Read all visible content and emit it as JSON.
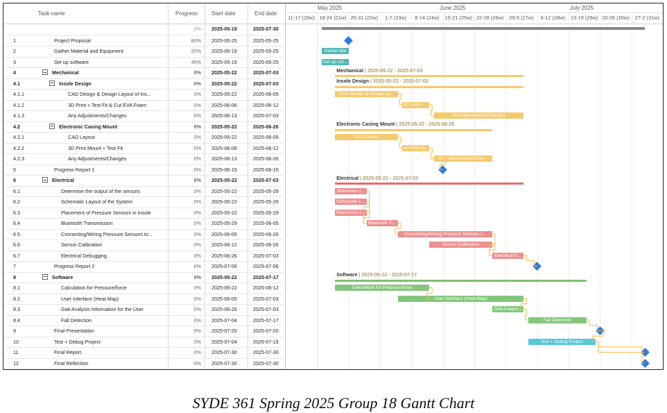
{
  "headers": {
    "task_name": "Task name",
    "progress": "Progress",
    "start": "Start date",
    "end": "End date"
  },
  "months": [
    "May 2025",
    "June 2025",
    "July 2025"
  ],
  "weeks": [
    "11-17 (20w)",
    "18-24 (21w)",
    "25-31 (22w)",
    "1-7 (23w)",
    "8-14 (24w)",
    "15-21 (25w)",
    "22-28 (26w)",
    "29-5 (27w)",
    "6-12 (28w)",
    "13-19 (29w)",
    "20-26 (30w)",
    "27-2 (31w)"
  ],
  "project_row": {
    "progress": "3%",
    "start": "2025-05-19",
    "end": "2025-07-30"
  },
  "tasks": [
    {
      "id": "1",
      "name": "Project Proposal",
      "progress": "80%",
      "start": "2025-05-25",
      "end": "2025-05-25",
      "level": 1,
      "bold": false,
      "expander": false
    },
    {
      "id": "2",
      "name": "Gather Material and Equipment",
      "progress": "20%",
      "start": "2025-05-19",
      "end": "2025-05-25",
      "level": 1,
      "bold": false,
      "expander": false
    },
    {
      "id": "3",
      "name": "Set up software",
      "progress": "45%",
      "start": "2025-05-19",
      "end": "2025-05-25",
      "level": 1,
      "bold": false,
      "expander": false
    },
    {
      "id": "4",
      "name": "Mechanical",
      "progress": "0%",
      "start": "2025-05-22",
      "end": "2025-07-03",
      "level": 0,
      "bold": true,
      "expander": true
    },
    {
      "id": "4.1",
      "name": "Insole Design",
      "progress": "0%",
      "start": "2025-05-22",
      "end": "2025-07-03",
      "level": 1,
      "bold": true,
      "expander": true
    },
    {
      "id": "4.1.1",
      "name": "CAD Design & Design Layout of Ins...",
      "progress": "0%",
      "start": "2025-05-22",
      "end": "2025-06-05",
      "level": 3,
      "bold": false,
      "expander": false
    },
    {
      "id": "4.1.2",
      "name": "3D Print + Test Fit & Cut EVA Foam",
      "progress": "0%",
      "start": "2025-06-06",
      "end": "2025-06-12",
      "level": 3,
      "bold": false,
      "expander": false
    },
    {
      "id": "4.1.3",
      "name": "Any Adjustments/Changes",
      "progress": "0%",
      "start": "2025-06-13",
      "end": "2025-07-03",
      "level": 3,
      "bold": false,
      "expander": false
    },
    {
      "id": "4.2",
      "name": "Electronic Casing Mount",
      "progress": "0%",
      "start": "2025-05-22",
      "end": "2025-06-26",
      "level": 1,
      "bold": true,
      "expander": true
    },
    {
      "id": "4.2.1",
      "name": "CAD Layout",
      "progress": "0%",
      "start": "2025-05-22",
      "end": "2025-06-05",
      "level": 3,
      "bold": false,
      "expander": false
    },
    {
      "id": "4.2.2",
      "name": "3D Print Mount + Test Fit",
      "progress": "0%",
      "start": "2025-06-06",
      "end": "2025-06-12",
      "level": 3,
      "bold": false,
      "expander": false
    },
    {
      "id": "4.2.3",
      "name": "Any Adjustments/Changes",
      "progress": "0%",
      "start": "2025-06-13",
      "end": "2025-06-26",
      "level": 3,
      "bold": false,
      "expander": false
    },
    {
      "id": "5",
      "name": "Progress Report 1",
      "progress": "0%",
      "start": "2025-06-15",
      "end": "2025-06-15",
      "level": 1,
      "bold": false,
      "expander": false
    },
    {
      "id": "6",
      "name": "Electrical",
      "progress": "0%",
      "start": "2025-05-22",
      "end": "2025-07-03",
      "level": 0,
      "bold": true,
      "expander": true
    },
    {
      "id": "6.1",
      "name": "Determine the output of the sensors",
      "progress": "0%",
      "start": "2025-05-22",
      "end": "2025-05-29",
      "level": 2,
      "bold": false,
      "expander": false
    },
    {
      "id": "6.2",
      "name": "Schematic Layout of the System",
      "progress": "0%",
      "start": "2025-05-22",
      "end": "2025-05-29",
      "level": 2,
      "bold": false,
      "expander": false
    },
    {
      "id": "6.3",
      "name": "Placement of Pressure Sensors in Insole",
      "progress": "0%",
      "start": "2025-05-22",
      "end": "2025-05-29",
      "level": 2,
      "bold": false,
      "expander": false
    },
    {
      "id": "6.4",
      "name": "Bluetooth Transmission",
      "progress": "0%",
      "start": "2025-05-29",
      "end": "2025-06-05",
      "level": 2,
      "bold": false,
      "expander": false
    },
    {
      "id": "6.5",
      "name": "Connecting/Wiring Pressure Sensors to...",
      "progress": "0%",
      "start": "2025-06-05",
      "end": "2025-06-26",
      "level": 2,
      "bold": false,
      "expander": false
    },
    {
      "id": "6.6",
      "name": "Sensor Calibration",
      "progress": "0%",
      "start": "2025-06-12",
      "end": "2025-06-26",
      "level": 2,
      "bold": false,
      "expander": false
    },
    {
      "id": "6.7",
      "name": "Electrical Debugging",
      "progress": "0%",
      "start": "2025-06-26",
      "end": "2025-07-03",
      "level": 2,
      "bold": false,
      "expander": false
    },
    {
      "id": "7",
      "name": "Progress Report 2",
      "progress": "0%",
      "start": "2025-07-06",
      "end": "2025-07-06",
      "level": 1,
      "bold": false,
      "expander": false
    },
    {
      "id": "8",
      "name": "Software",
      "progress": "0%",
      "start": "2025-05-22",
      "end": "2025-07-17",
      "level": 0,
      "bold": true,
      "expander": true
    },
    {
      "id": "8.1",
      "name": "Calculation for Pressure/force",
      "progress": "0%",
      "start": "2025-05-22",
      "end": "2025-06-12",
      "level": 2,
      "bold": false,
      "expander": false
    },
    {
      "id": "8.2",
      "name": "User Interface (Heat Map)",
      "progress": "0%",
      "start": "2025-06-05",
      "end": "2025-07-03",
      "level": 2,
      "bold": false,
      "expander": false
    },
    {
      "id": "8.3",
      "name": "Gait Analysis Information for the User",
      "progress": "0%",
      "start": "2025-06-26",
      "end": "2025-07-03",
      "level": 2,
      "bold": false,
      "expander": false
    },
    {
      "id": "8.4",
      "name": "Fall Detection",
      "progress": "0%",
      "start": "2025-07-04",
      "end": "2025-07-17",
      "level": 2,
      "bold": false,
      "expander": false
    },
    {
      "id": "9",
      "name": "Final Presentation",
      "progress": "0%",
      "start": "2025-07-20",
      "end": "2025-07-20",
      "level": 1,
      "bold": false,
      "expander": false
    },
    {
      "id": "10",
      "name": "Test + Debug Project",
      "progress": "0%",
      "start": "2025-07-04",
      "end": "2025-07-19",
      "level": 1,
      "bold": false,
      "expander": false
    },
    {
      "id": "11",
      "name": "Final Report",
      "progress": "0%",
      "start": "2025-07-30",
      "end": "2025-07-30",
      "level": 1,
      "bold": false,
      "expander": false
    },
    {
      "id": "12",
      "name": "Final Reflection",
      "progress": "0%",
      "start": "2025-07-30",
      "end": "2025-07-30",
      "level": 1,
      "bold": false,
      "expander": false
    }
  ],
  "bars": [
    {
      "row": 0,
      "kind": "milestone",
      "start": "2025-05-25",
      "color": "#2a7ae2",
      "label": ""
    },
    {
      "row": 1,
      "kind": "task",
      "start": "2025-05-19",
      "end": "2025-05-25",
      "color": "#52b7b8",
      "label": "Gather Ma"
    },
    {
      "row": 2,
      "kind": "task",
      "start": "2025-05-19",
      "end": "2025-05-25",
      "color": "#52b7b8",
      "label": "Set up sof..."
    },
    {
      "row": 3,
      "kind": "summary",
      "start": "2025-05-22",
      "end": "2025-07-03",
      "color": "#f6c96b",
      "label": "Mechanical",
      "dates": "2025-05-22 - 2025-07-03"
    },
    {
      "row": 4,
      "kind": "summary",
      "start": "2025-05-22",
      "end": "2025-07-03",
      "color": "#f6c96b",
      "label": "Insole Design",
      "dates": "2025-05-22 - 2025-07-03"
    },
    {
      "row": 5,
      "kind": "task",
      "start": "2025-05-22",
      "end": "2025-06-05",
      "color": "#f6c96b",
      "label": "CAD Design & Design La..."
    },
    {
      "row": 6,
      "kind": "task",
      "start": "2025-06-06",
      "end": "2025-06-12",
      "color": "#f6c96b",
      "label": "3D Print + ..."
    },
    {
      "row": 7,
      "kind": "task",
      "start": "2025-06-13",
      "end": "2025-07-03",
      "color": "#f6c96b",
      "label": "Any Adjustments/Changes"
    },
    {
      "row": 8,
      "kind": "summary",
      "start": "2025-05-22",
      "end": "2025-06-26",
      "color": "#f6c96b",
      "label": "Electronic Casing Mount",
      "dates": "2025-05-22 - 2025-06-26"
    },
    {
      "row": 9,
      "kind": "task",
      "start": "2025-05-22",
      "end": "2025-06-05",
      "color": "#f6c96b",
      "label": "CAD Layout"
    },
    {
      "row": 10,
      "kind": "task",
      "start": "2025-06-06",
      "end": "2025-06-12",
      "color": "#f6c96b",
      "label": "3D Print M..."
    },
    {
      "row": 11,
      "kind": "task",
      "start": "2025-06-13",
      "end": "2025-06-26",
      "color": "#f6c96b",
      "label": "Any Adjustments/Chan..."
    },
    {
      "row": 12,
      "kind": "milestone",
      "start": "2025-06-15",
      "color": "#2a7ae2",
      "label": ""
    },
    {
      "row": 13,
      "kind": "summary",
      "start": "2025-05-22",
      "end": "2025-07-03",
      "color": "#e86a6a",
      "label": "Electrical",
      "dates": "2025-05-22 - 2025-07-03"
    },
    {
      "row": 14,
      "kind": "task",
      "start": "2025-05-22",
      "end": "2025-05-29",
      "color": "#ee8e8e",
      "label": "Determine t..."
    },
    {
      "row": 15,
      "kind": "task",
      "start": "2025-05-22",
      "end": "2025-05-29",
      "color": "#ee8e8e",
      "label": "Schematic L..."
    },
    {
      "row": 16,
      "kind": "task",
      "start": "2025-05-22",
      "end": "2025-05-29",
      "color": "#ee8e8e",
      "label": "Placement o..."
    },
    {
      "row": 17,
      "kind": "task",
      "start": "2025-05-29",
      "end": "2025-06-05",
      "color": "#ee8e8e",
      "label": "Bluetooth Tr..."
    },
    {
      "row": 18,
      "kind": "task",
      "start": "2025-06-05",
      "end": "2025-06-26",
      "color": "#ee8e8e",
      "label": "Connecting/Wiring Pressure Sensors I..."
    },
    {
      "row": 19,
      "kind": "task",
      "start": "2025-06-12",
      "end": "2025-06-26",
      "color": "#ee8e8e",
      "label": "Sensor Calibration"
    },
    {
      "row": 20,
      "kind": "task",
      "start": "2025-06-26",
      "end": "2025-07-03",
      "color": "#ee8e8e",
      "label": "Electrical D..."
    },
    {
      "row": 21,
      "kind": "milestone",
      "start": "2025-07-06",
      "color": "#2a7ae2",
      "label": ""
    },
    {
      "row": 22,
      "kind": "summary",
      "start": "2025-05-22",
      "end": "2025-07-17",
      "color": "#7cc36a",
      "label": "Software",
      "dates": "2025-05-22 - 2025-07-17"
    },
    {
      "row": 23,
      "kind": "task",
      "start": "2025-05-22",
      "end": "2025-06-12",
      "color": "#84c77c",
      "label": "Calculation for Pressure/force"
    },
    {
      "row": 24,
      "kind": "task",
      "start": "2025-06-05",
      "end": "2025-07-03",
      "color": "#84c77c",
      "label": "User Interface (Heat Map)"
    },
    {
      "row": 25,
      "kind": "task",
      "start": "2025-06-26",
      "end": "2025-07-03",
      "color": "#84c77c",
      "label": "Gait Analysi..."
    },
    {
      "row": 26,
      "kind": "task",
      "start": "2025-07-04",
      "end": "2025-07-17",
      "color": "#84c77c",
      "label": "Fall Detection"
    },
    {
      "row": 27,
      "kind": "milestone",
      "start": "2025-07-20",
      "color": "#2a7ae2",
      "label": ""
    },
    {
      "row": 28,
      "kind": "task",
      "start": "2025-07-04",
      "end": "2025-07-19",
      "color": "#55c8d6",
      "label": "Test + Debug Project"
    },
    {
      "row": 29,
      "kind": "milestone",
      "start": "2025-07-30",
      "color": "#2a7ae2",
      "label": ""
    },
    {
      "row": 30,
      "kind": "milestone",
      "start": "2025-07-30",
      "color": "#2a7ae2",
      "label": ""
    }
  ],
  "project_bar": {
    "start": "2025-05-19",
    "end": "2025-07-30",
    "color": "#888888"
  },
  "caption": "SYDE 361 Spring 2025 Group 18 Gantt Chart"
}
